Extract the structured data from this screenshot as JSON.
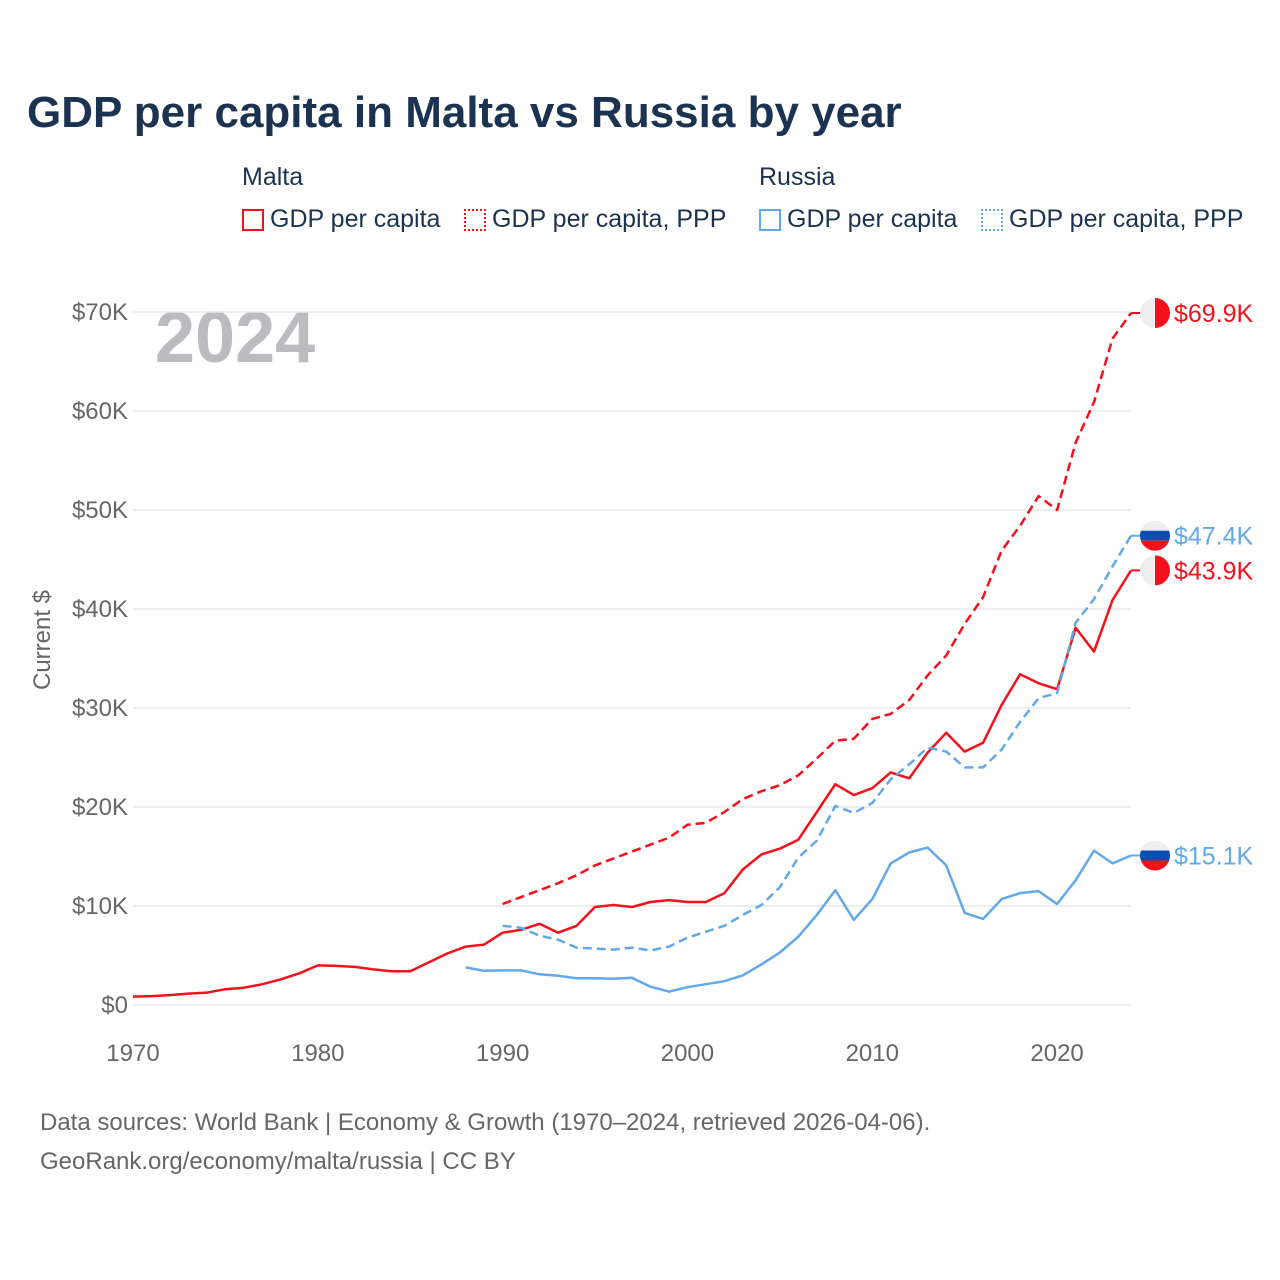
{
  "title": "GDP per capita in Malta vs Russia by year",
  "legend": {
    "groups": [
      {
        "name": "Malta",
        "items": [
          "GDP per capita",
          "GDP per capita, PPP"
        ]
      },
      {
        "name": "Russia",
        "items": [
          "GDP per capita",
          "GDP per capita, PPP"
        ]
      }
    ]
  },
  "footer": {
    "line1": "Data sources: World Bank | Economy & Growth (1970–2024, retrieved 2026-04-06).",
    "line2": "GeoRank.org/economy/malta/russia | CC BY"
  },
  "chart_data": {
    "type": "line",
    "title": "GDP per capita in Malta vs Russia by year",
    "year_label": "2024",
    "xlabel": "",
    "ylabel": "Current $",
    "xlim": [
      1970,
      2024
    ],
    "ylim": [
      0,
      70000
    ],
    "x_ticks": [
      "1970",
      "1980",
      "1990",
      "2000",
      "2010",
      "2020"
    ],
    "y_ticks": [
      "$0",
      "$10K",
      "$20K",
      "$30K",
      "$40K",
      "$50K",
      "$60K",
      "$70K"
    ],
    "grid": true,
    "colors": {
      "malta": "#f5111b",
      "russia": "#62a8ea"
    },
    "series": [
      {
        "name": "Malta GDP per capita",
        "country": "malta",
        "dashed": false,
        "start": 1970,
        "end_label": "$43.9K",
        "values": [
          850,
          900,
          1000,
          1150,
          1250,
          1600,
          1750,
          2100,
          2600,
          3200,
          4000,
          3950,
          3850,
          3600,
          3400,
          3400,
          4300,
          5200,
          5900,
          6100,
          7300,
          7600,
          8200,
          7300,
          8000,
          9900,
          10100,
          9900,
          10400,
          10600,
          10400,
          10400,
          11300,
          13700,
          15200,
          15800,
          16700,
          19500,
          22300,
          21200,
          21900,
          23500,
          22900,
          25500,
          27500,
          25600,
          26500,
          30300,
          33400,
          32500,
          31900,
          38100,
          35700,
          40900,
          43900
        ]
      },
      {
        "name": "Malta GDP per capita, PPP",
        "country": "malta",
        "dashed": true,
        "start": 1990,
        "end_label": "$69.9K",
        "values": [
          10200,
          10900,
          11600,
          12300,
          13100,
          14100,
          14800,
          15500,
          16200,
          16900,
          18200,
          18400,
          19500,
          20800,
          21600,
          22200,
          23200,
          24900,
          26700,
          26900,
          28900,
          29400,
          30800,
          33300,
          35300,
          38500,
          41200,
          45900,
          48400,
          51400,
          50000,
          56800,
          60900,
          67300,
          69900
        ]
      },
      {
        "name": "Russia GDP per capita",
        "country": "russia",
        "dashed": false,
        "start": 1988,
        "end_label": "$15.1K",
        "values": [
          3800,
          3450,
          3500,
          3500,
          3100,
          2950,
          2700,
          2700,
          2650,
          2750,
          1850,
          1350,
          1800,
          2100,
          2400,
          3000,
          4100,
          5300,
          6900,
          9100,
          11600,
          8600,
          10700,
          14300,
          15400,
          15900,
          14100,
          9300,
          8700,
          10700,
          11300,
          11500,
          10200,
          12600,
          15600,
          14300,
          15100
        ]
      },
      {
        "name": "Russia GDP per capita, PPP",
        "country": "russia",
        "dashed": true,
        "start": 1990,
        "end_label": "$47.4K",
        "values": [
          8000,
          7800,
          7000,
          6600,
          5800,
          5700,
          5600,
          5800,
          5500,
          5900,
          6800,
          7400,
          8000,
          9100,
          10100,
          11900,
          14900,
          16600,
          20100,
          19400,
          20400,
          22800,
          24300,
          26000,
          25600,
          24000,
          24000,
          25800,
          28600,
          31000,
          31500,
          38600,
          41000,
          44300,
          47400
        ]
      }
    ]
  }
}
